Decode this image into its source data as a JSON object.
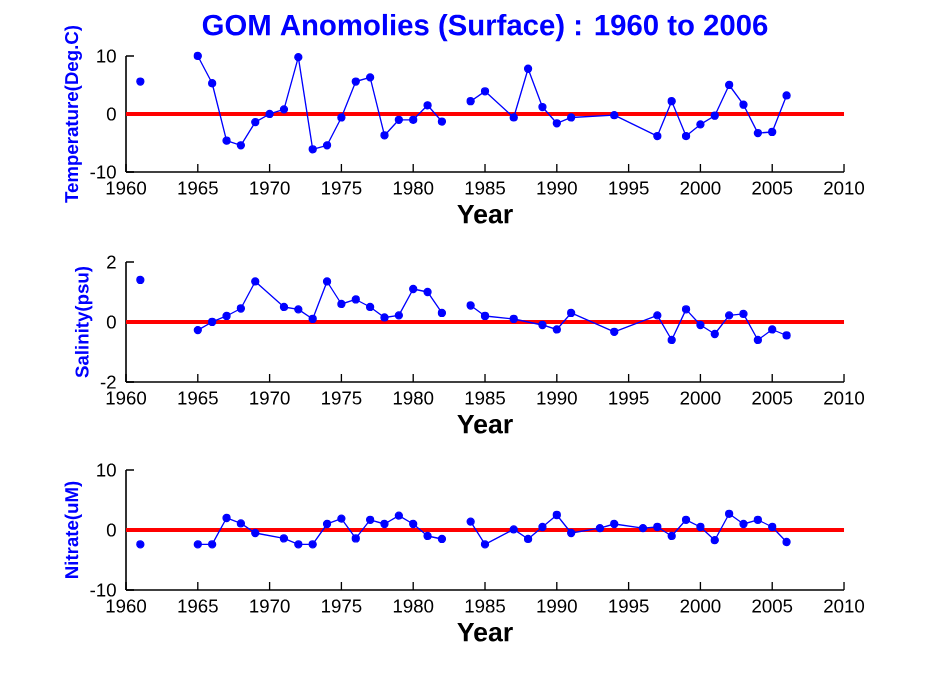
{
  "chart_data": [
    {
      "type": "line",
      "title": "GOM Anomolies (Surface) : 1960 to 2006",
      "xlabel": "Year",
      "ylabel": "Temperature(Deg.C)",
      "marker": "circle",
      "line_style": "solid",
      "series": [
        {
          "color": "#0000ff",
          "x": [
            1961,
            1962,
            1965,
            1966,
            1967,
            1968,
            1969,
            1970,
            1971,
            1972,
            1973,
            1974,
            1975,
            1976,
            1977,
            1978,
            1979,
            1980,
            1981,
            1982,
            1983,
            1984,
            1985,
            1987,
            1988,
            1989,
            1990,
            1991,
            1994,
            1997,
            1998,
            1999,
            2000,
            2001,
            2002,
            2003,
            2004,
            2005,
            2006
          ],
          "values": [
            5.6,
            null,
            10,
            5.3,
            -4.6,
            -5.4,
            -1.4,
            0,
            0.8,
            9.8,
            -6.1,
            -5.4,
            -0.6,
            5.6,
            6.3,
            -3.7,
            -1.0,
            -1.0,
            1.5,
            -1.3,
            null,
            2.2,
            3.9,
            -0.6,
            7.8,
            1.2,
            -1.6,
            -0.6,
            -0.2,
            -3.8,
            2.2,
            -3.8,
            -1.8,
            -0.3,
            5.0,
            1.6,
            -3.3,
            -3.1,
            3.2
          ]
        }
      ],
      "xlim": [
        1960,
        2010
      ],
      "xticks": [
        1960,
        1965,
        1970,
        1975,
        1980,
        1985,
        1990,
        1995,
        2000,
        2005,
        2010
      ],
      "ylim": [
        -10,
        10
      ],
      "yticks": [
        -10,
        0,
        10
      ],
      "ref_lines": [
        {
          "axis": "y",
          "value": 0,
          "color": "#ff0000"
        }
      ]
    },
    {
      "type": "line",
      "xlabel": "Year",
      "ylabel": "Salinity(psu)",
      "marker": "circle",
      "line_style": "solid",
      "series": [
        {
          "color": "#0000ff",
          "x": [
            1961,
            1962,
            1965,
            1966,
            1967,
            1968,
            1969,
            1971,
            1972,
            1973,
            1974,
            1975,
            1976,
            1977,
            1978,
            1979,
            1980,
            1981,
            1982,
            1983,
            1984,
            1985,
            1987,
            1989,
            1990,
            1991,
            1994,
            1997,
            1998,
            1999,
            2000,
            2001,
            2002,
            2003,
            2004,
            2005,
            2006
          ],
          "values": [
            1.4,
            null,
            -0.27,
            0,
            0.2,
            0.45,
            1.35,
            0.5,
            0.42,
            0.1,
            1.35,
            0.6,
            0.75,
            0.5,
            0.15,
            0.22,
            1.1,
            1.0,
            0.3,
            null,
            0.55,
            0.2,
            0.1,
            -0.1,
            -0.25,
            0.3,
            -0.33,
            0.22,
            -0.6,
            0.42,
            -0.1,
            -0.4,
            0.22,
            0.27,
            -0.6,
            -0.25,
            -0.45
          ]
        }
      ],
      "xlim": [
        1960,
        2010
      ],
      "xticks": [
        1960,
        1965,
        1970,
        1975,
        1980,
        1985,
        1990,
        1995,
        2000,
        2005,
        2010
      ],
      "ylim": [
        -2,
        2
      ],
      "yticks": [
        -2,
        0,
        2
      ],
      "ref_lines": [
        {
          "axis": "y",
          "value": 0,
          "color": "#ff0000"
        }
      ]
    },
    {
      "type": "line",
      "xlabel": "Year",
      "ylabel": "Nitrate(uM)",
      "marker": "circle",
      "line_style": "solid",
      "series": [
        {
          "color": "#0000ff",
          "x": [
            1961,
            1962,
            1965,
            1966,
            1967,
            1968,
            1969,
            1971,
            1972,
            1973,
            1974,
            1975,
            1976,
            1977,
            1978,
            1979,
            1980,
            1981,
            1982,
            1983,
            1984,
            1985,
            1987,
            1988,
            1989,
            1990,
            1991,
            1993,
            1994,
            1996,
            1997,
            1998,
            1999,
            2000,
            2001,
            2002,
            2003,
            2004,
            2005,
            2006
          ],
          "values": [
            -2.4,
            null,
            -2.4,
            -2.4,
            2.0,
            1.1,
            -0.5,
            -1.4,
            -2.4,
            -2.4,
            1.0,
            1.9,
            -1.4,
            1.7,
            1.0,
            2.4,
            1.0,
            -1.0,
            -1.5,
            null,
            1.4,
            -2.4,
            0.1,
            -1.5,
            0.5,
            2.5,
            -0.5,
            0.3,
            1.0,
            0.3,
            0.5,
            -1.0,
            1.7,
            0.5,
            -1.7,
            2.7,
            1.0,
            1.7,
            0.5,
            -2.0
          ]
        }
      ],
      "xlim": [
        1960,
        2010
      ],
      "xticks": [
        1960,
        1965,
        1970,
        1975,
        1980,
        1985,
        1990,
        1995,
        2000,
        2005,
        2010
      ],
      "ylim": [
        -10,
        10
      ],
      "yticks": [
        -10,
        0,
        10
      ],
      "ref_lines": [
        {
          "axis": "y",
          "value": 0,
          "color": "#ff0000"
        }
      ]
    }
  ]
}
